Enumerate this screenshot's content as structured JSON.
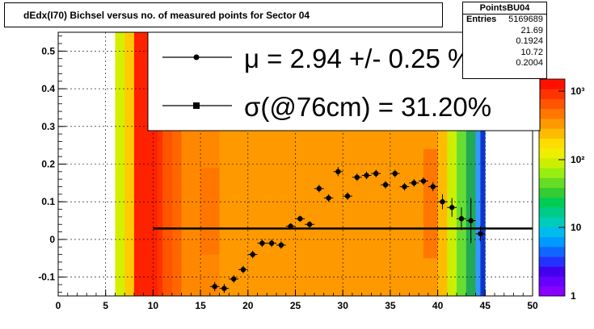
{
  "title": "dEdx(I70) Bichsel versus no. of measured points for Sector 04",
  "stats": {
    "name": "PointsBU04",
    "rows": [
      {
        "label": "Entries",
        "value": "5169689"
      },
      {
        "label": "",
        "value": "21.69"
      },
      {
        "label": "",
        "value": "0.1924"
      },
      {
        "label": "",
        "value": "10.72"
      },
      {
        "label": "",
        "value": "0.2004"
      }
    ]
  },
  "legend": {
    "mu_text": "μ  =  2.94 +/-  0.25 %",
    "sigma_text": "σ(@76cm) = 31.20%"
  },
  "chart_data": {
    "type": "heatmap",
    "title": "dEdx(I70) Bichsel versus no. of measured points for Sector 04",
    "xlim": [
      0,
      50
    ],
    "ylim": [
      -0.15,
      0.55
    ],
    "x_ticks": [
      0,
      5,
      10,
      15,
      20,
      25,
      30,
      35,
      40,
      45,
      50
    ],
    "y_ticks": [
      -0.1,
      0,
      0.1,
      0.2,
      0.3,
      0.4,
      0.5
    ],
    "colorbar": {
      "scale": "log",
      "ticks": [
        "1",
        "10",
        "10²",
        "10³"
      ]
    },
    "grid": true,
    "fit_line": {
      "x": [
        10,
        50
      ],
      "y": [
        0.029,
        0.029
      ]
    },
    "points": {
      "x": [
        16.5,
        17.5,
        18.5,
        19.5,
        20.5,
        21.5,
        22.5,
        23.5,
        24.5,
        25.5,
        26.5,
        27.5,
        28.5,
        29.5,
        30.5,
        31.5,
        32.5,
        33.5,
        34.5,
        35.5,
        36.5,
        37.5,
        38.5,
        39.5,
        40.5,
        41.5,
        42.5,
        43.5,
        44.5
      ],
      "y": [
        -0.125,
        -0.13,
        -0.105,
        -0.08,
        -0.04,
        -0.01,
        -0.01,
        -0.015,
        0.035,
        0.055,
        0.04,
        0.135,
        0.11,
        0.18,
        0.115,
        0.165,
        0.17,
        0.175,
        0.145,
        0.175,
        0.14,
        0.15,
        0.155,
        0.14,
        0.1,
        0.085,
        0.055,
        0.05,
        0.015
      ],
      "err": [
        0.012,
        0.012,
        0.01,
        0.01,
        0.01,
        0.01,
        0.01,
        0.01,
        0.008,
        0.008,
        0.008,
        0.01,
        0.01,
        0.012,
        0.01,
        0.01,
        0.01,
        0.01,
        0.01,
        0.01,
        0.01,
        0.01,
        0.01,
        0.012,
        0.02,
        0.025,
        0.03,
        0.06,
        0.02
      ]
    },
    "heat_columns": {
      "x_edges": [
        6,
        7,
        8,
        9,
        10,
        11,
        12,
        13,
        14,
        15,
        16,
        17,
        18,
        19,
        20,
        21,
        22,
        23,
        24,
        25,
        26,
        27,
        28,
        29,
        30,
        31,
        32,
        33,
        34,
        35,
        36,
        37,
        38,
        39,
        40,
        41,
        42,
        43,
        44,
        45
      ],
      "colors": [
        "#d4f000",
        "#ffcc00",
        "#ff6600",
        "#ff3300",
        "#ff3300",
        "#ff5500",
        "#ff6600",
        "#ff8800",
        "#ff8800",
        "#ff8800",
        "#ff8800",
        "#ff9900",
        "#ff9900",
        "#ff9900",
        "#ff9900",
        "#ff9900",
        "#ff9900",
        "#ff9900",
        "#ff9900",
        "#ff9900",
        "#ff9900",
        "#ff9900",
        "#ff9900",
        "#ff9900",
        "#ff9900",
        "#ff9900",
        "#ff9900",
        "#ff9900",
        "#ff9900",
        "#ff9900",
        "#ff9900",
        "#ff9900",
        "#ff9900",
        "#ff9900",
        "#ffbb00",
        "#ccee00",
        "#66dd33",
        "#22aa55",
        "#3399ff"
      ]
    }
  }
}
